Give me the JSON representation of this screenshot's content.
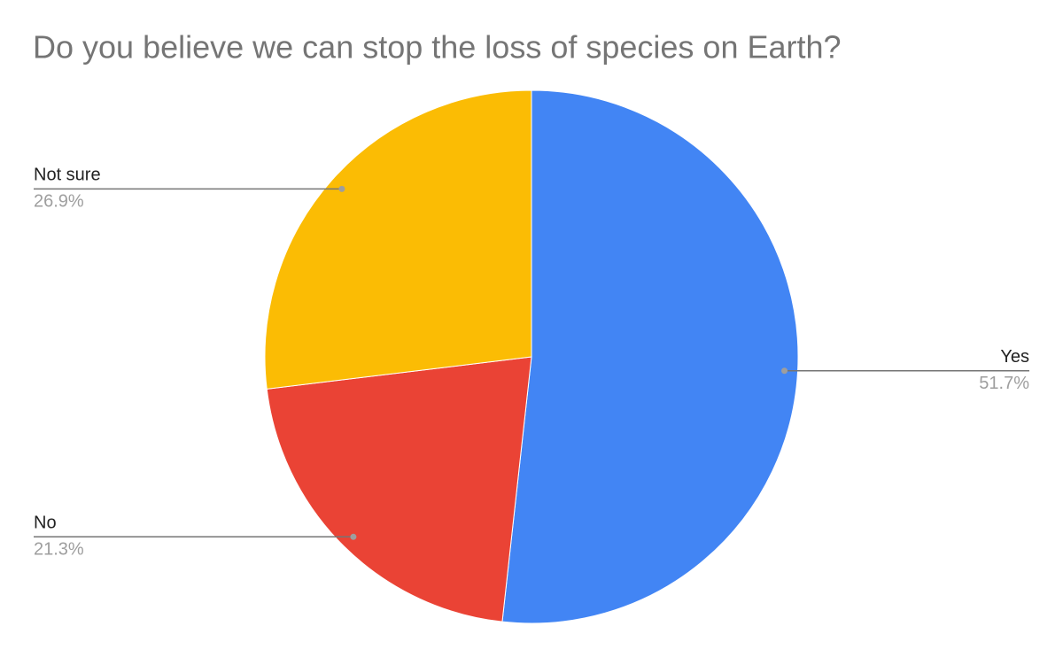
{
  "chart_data": {
    "type": "pie",
    "title": "Do you believe we can stop the loss of species on Earth?",
    "categories": [
      "Yes",
      "No",
      "Not sure"
    ],
    "values": [
      51.7,
      21.3,
      26.9
    ],
    "value_labels": [
      "51.7%",
      "21.3%",
      "26.9%"
    ],
    "colors": [
      "#4285f4",
      "#ea4335",
      "#fbbc04"
    ]
  }
}
